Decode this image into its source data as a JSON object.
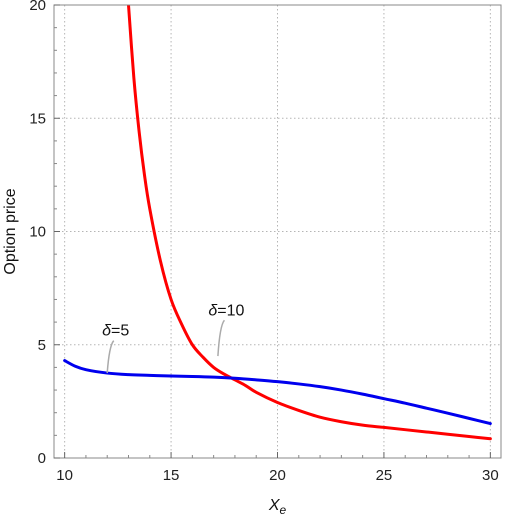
{
  "chart_data": {
    "type": "line",
    "xlabel_base": "X",
    "xlabel_sub": "e",
    "ylabel": "Option price",
    "xlim": [
      9.5,
      30.5
    ],
    "ylim": [
      0,
      20
    ],
    "x_ticks": [
      10,
      15,
      20,
      25,
      30
    ],
    "y_ticks": [
      0,
      5,
      10,
      15,
      20
    ],
    "grid": true,
    "series": [
      {
        "color": "#ff0000",
        "x": [
          13.0,
          13.25,
          13.5,
          13.75,
          14.0,
          14.5,
          15.0,
          15.5,
          16.0,
          16.5,
          17.0,
          17.5,
          18.0,
          18.5,
          19.0,
          20.0,
          21.0,
          22.0,
          23.0,
          24.0,
          25.0,
          26.0,
          27.0,
          28.0,
          29.0,
          30.0
        ],
        "y": [
          20.0,
          16.8,
          14.4,
          12.5,
          11.0,
          8.7,
          7.0,
          5.9,
          5.0,
          4.45,
          4.0,
          3.7,
          3.45,
          3.2,
          2.9,
          2.45,
          2.1,
          1.8,
          1.6,
          1.45,
          1.35,
          1.25,
          1.15,
          1.05,
          0.95,
          0.85
        ]
      },
      {
        "color": "#0000ee",
        "x": [
          10.0,
          10.5,
          11.0,
          12.0,
          13.0,
          14.0,
          15.0,
          16.0,
          17.0,
          18.0,
          19.0,
          20.0,
          21.0,
          22.0,
          23.0,
          24.0,
          25.0,
          26.0,
          27.0,
          28.0,
          29.0,
          30.0
        ],
        "y": [
          4.3,
          4.05,
          3.9,
          3.75,
          3.68,
          3.65,
          3.62,
          3.6,
          3.57,
          3.52,
          3.45,
          3.37,
          3.27,
          3.15,
          3.0,
          2.82,
          2.62,
          2.42,
          2.2,
          1.98,
          1.75,
          1.52
        ]
      }
    ],
    "annotations": [
      {
        "symbol": "δ",
        "value": "=5",
        "text_x": 12.4,
        "text_y": 5.4,
        "point_x": 12.0,
        "point_y": 3.75
      },
      {
        "symbol": "δ",
        "value": "=10",
        "text_x": 17.6,
        "text_y": 6.3,
        "point_x": 17.2,
        "point_y": 4.5
      }
    ]
  }
}
